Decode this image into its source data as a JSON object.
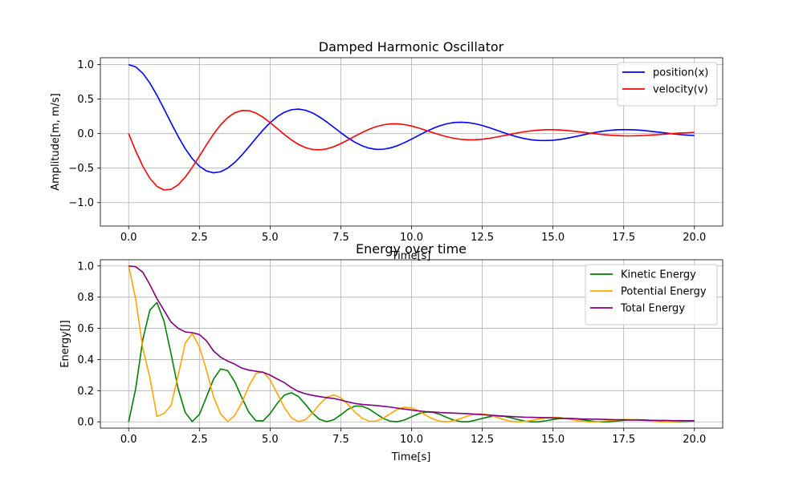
{
  "chart_data": [
    {
      "type": "line",
      "title": "Damped Harmonic Oscillator",
      "xlabel": "Time[s]",
      "ylabel": "Amplitude[m, m/s]",
      "xlim": [
        -1.0,
        21.0
      ],
      "ylim": [
        -1.34,
        1.1
      ],
      "xticks": [
        0.0,
        2.5,
        5.0,
        7.5,
        10.0,
        12.5,
        15.0,
        17.5,
        20.0
      ],
      "xtick_labels": [
        "0.0",
        "2.5",
        "5.0",
        "7.5",
        "10.0",
        "12.5",
        "15.0",
        "17.5",
        "20.0"
      ],
      "yticks": [
        -1.0,
        -0.5,
        0.0,
        0.5,
        1.0
      ],
      "ytick_labels": [
        "−1.0",
        "−0.5",
        "0.0",
        "0.5",
        "1.0"
      ],
      "grid": true,
      "legend": "top-right",
      "series": [
        {
          "name": "position(x)",
          "color": "#0000ff",
          "x": [
            0,
            0.25,
            0.5,
            0.75,
            1.0,
            1.25,
            1.5,
            1.75,
            2.0,
            2.25,
            2.5,
            2.75,
            3.0,
            3.25,
            3.5,
            3.75,
            4.0,
            4.25,
            4.5,
            4.75,
            5.0,
            5.25,
            5.5,
            5.75,
            6.0,
            6.25,
            6.5,
            6.75,
            7.0,
            7.25,
            7.5,
            7.75,
            8.0,
            8.25,
            8.5,
            8.75,
            9.0,
            9.25,
            9.5,
            9.75,
            10.0,
            10.25,
            10.5,
            10.75,
            11.0,
            11.25,
            11.5,
            11.75,
            12.0,
            12.25,
            12.5,
            12.75,
            13.0,
            13.25,
            13.5,
            13.75,
            14.0,
            14.25,
            14.5,
            14.75,
            15.0,
            15.25,
            15.5,
            15.75,
            16.0,
            16.25,
            16.5,
            16.75,
            17.0,
            17.25,
            17.5,
            17.75,
            18.0,
            18.25,
            18.5,
            18.75,
            19.0,
            19.25,
            19.5,
            19.75,
            20.0
          ],
          "y": [
            1.0,
            0.967,
            0.874,
            0.733,
            0.556,
            0.358,
            0.154,
            -0.042,
            -0.218,
            -0.364,
            -0.473,
            -0.542,
            -0.568,
            -0.553,
            -0.501,
            -0.418,
            -0.312,
            -0.192,
            -0.068,
            0.052,
            0.158,
            0.245,
            0.309,
            0.346,
            0.356,
            0.339,
            0.3,
            0.241,
            0.17,
            0.092,
            0.013,
            -0.061,
            -0.125,
            -0.176,
            -0.211,
            -0.228,
            -0.226,
            -0.208,
            -0.175,
            -0.131,
            -0.08,
            -0.026,
            0.027,
            0.074,
            0.114,
            0.143,
            0.161,
            0.166,
            0.16,
            0.143,
            0.118,
            0.086,
            0.051,
            0.015,
            -0.019,
            -0.049,
            -0.073,
            -0.09,
            -0.099,
            -0.101,
            -0.096,
            -0.084,
            -0.067,
            -0.047,
            -0.025,
            -0.002,
            0.018,
            0.035,
            0.047,
            0.055,
            0.058,
            0.057,
            0.052,
            0.043,
            0.032,
            0.02,
            0.008,
            -0.004,
            -0.014,
            -0.022,
            -0.027
          ]
        },
        {
          "name": "velocity(v)",
          "color": "#ff0000",
          "x": [
            0,
            0.25,
            0.5,
            0.75,
            1.0,
            1.25,
            1.5,
            1.75,
            2.0,
            2.25,
            2.5,
            2.75,
            3.0,
            3.25,
            3.5,
            3.75,
            4.0,
            4.25,
            4.5,
            4.75,
            5.0,
            5.25,
            5.5,
            5.75,
            6.0,
            6.25,
            6.5,
            6.75,
            7.0,
            7.25,
            7.5,
            7.75,
            8.0,
            8.25,
            8.5,
            8.75,
            9.0,
            9.25,
            9.5,
            9.75,
            10.0,
            10.25,
            10.5,
            10.75,
            11.0,
            11.25,
            11.5,
            11.75,
            12.0,
            12.25,
            12.5,
            12.75,
            13.0,
            13.25,
            13.5,
            13.75,
            14.0,
            14.25,
            14.5,
            14.75,
            15.0,
            15.25,
            15.5,
            15.75,
            16.0,
            16.25,
            16.5,
            16.75,
            17.0,
            17.25,
            17.5,
            17.75,
            18.0,
            18.25,
            18.5,
            18.75,
            19.0,
            19.25,
            19.5,
            19.75,
            20.0
          ],
          "y": [
            0.0,
            -0.251,
            -0.473,
            -0.649,
            -0.765,
            -0.817,
            -0.807,
            -0.742,
            -0.631,
            -0.488,
            -0.327,
            -0.163,
            -0.008,
            0.127,
            0.231,
            0.302,
            0.335,
            0.333,
            0.298,
            0.238,
            0.16,
            0.074,
            -0.012,
            -0.09,
            -0.156,
            -0.203,
            -0.23,
            -0.236,
            -0.221,
            -0.19,
            -0.145,
            -0.093,
            -0.037,
            0.016,
            0.063,
            0.101,
            0.127,
            0.141,
            0.142,
            0.131,
            0.11,
            0.082,
            0.049,
            0.015,
            -0.017,
            -0.046,
            -0.068,
            -0.083,
            -0.09,
            -0.089,
            -0.082,
            -0.068,
            -0.05,
            -0.03,
            -0.009,
            0.011,
            0.028,
            0.041,
            0.051,
            0.056,
            0.056,
            0.052,
            0.045,
            0.035,
            0.023,
            0.01,
            -0.002,
            -0.013,
            -0.022,
            -0.028,
            -0.032,
            -0.033,
            -0.031,
            -0.027,
            -0.021,
            -0.014,
            -0.006,
            0.001,
            0.008,
            0.013,
            0.017
          ]
        }
      ]
    },
    {
      "type": "line",
      "title": "Energy over time",
      "xlabel": "Time[s]",
      "ylabel": "Energy[J]",
      "xlim": [
        -1.0,
        21.0
      ],
      "ylim": [
        -0.04,
        1.04
      ],
      "xticks": [
        0.0,
        2.5,
        5.0,
        7.5,
        10.0,
        12.5,
        15.0,
        17.5,
        20.0
      ],
      "xtick_labels": [
        "0.0",
        "2.5",
        "5.0",
        "7.5",
        "10.0",
        "12.5",
        "15.0",
        "17.5",
        "20.0"
      ],
      "yticks": [
        0.0,
        0.2,
        0.4,
        0.6,
        0.8,
        1.0
      ],
      "ytick_labels": [
        "0.0",
        "0.2",
        "0.4",
        "0.6",
        "0.8",
        "1.0"
      ],
      "grid": true,
      "legend": "top-right",
      "series": [
        {
          "name": "Kinetic Energy",
          "color": "#008000",
          "x": [
            0,
            0.25,
            0.5,
            0.75,
            1.0,
            1.25,
            1.5,
            1.75,
            2.0,
            2.25,
            2.5,
            2.75,
            3.0,
            3.25,
            3.5,
            3.75,
            4.0,
            4.25,
            4.5,
            4.75,
            5.0,
            5.25,
            5.5,
            5.75,
            6.0,
            6.25,
            6.5,
            6.75,
            7.0,
            7.25,
            7.5,
            7.75,
            8.0,
            8.25,
            8.5,
            8.75,
            9.0,
            9.25,
            9.5,
            9.75,
            10.0,
            10.25,
            10.5,
            10.75,
            11.0,
            11.25,
            11.5,
            11.75,
            12.0,
            12.25,
            12.5,
            12.75,
            13.0,
            13.25,
            13.5,
            13.75,
            14.0,
            14.25,
            14.5,
            14.75,
            15.0,
            15.25,
            15.5,
            15.75,
            16.0,
            16.25,
            16.5,
            16.75,
            17.0,
            17.25,
            17.5,
            17.75,
            18.0,
            18.25,
            18.5,
            18.75,
            19.0,
            19.25,
            19.5,
            19.75,
            20.0
          ],
          "y": [
            0.0,
            0.214,
            0.528,
            0.717,
            0.765,
            0.646,
            0.435,
            0.212,
            0.06,
            0.002,
            0.048,
            0.159,
            0.274,
            0.339,
            0.329,
            0.258,
            0.155,
            0.061,
            0.007,
            0.006,
            0.053,
            0.118,
            0.171,
            0.187,
            0.163,
            0.112,
            0.056,
            0.016,
            0.001,
            0.014,
            0.045,
            0.08,
            0.101,
            0.101,
            0.082,
            0.052,
            0.022,
            0.004,
            0.001,
            0.012,
            0.032,
            0.052,
            0.063,
            0.061,
            0.048,
            0.028,
            0.011,
            0.001,
            0.001,
            0.01,
            0.022,
            0.033,
            0.038,
            0.036,
            0.027,
            0.015,
            0.005,
            0.0,
            0.001,
            0.007,
            0.015,
            0.021,
            0.023,
            0.021,
            0.015,
            0.008,
            0.002,
            0.0,
            0.001,
            0.005,
            0.01,
            0.013,
            0.014,
            0.012,
            0.008,
            0.004,
            0.001,
            0.0,
            0.001,
            0.003,
            0.006
          ]
        },
        {
          "name": "Potential Energy",
          "color": "#ffa500",
          "x": [
            0,
            0.25,
            0.5,
            0.75,
            1.0,
            1.25,
            1.5,
            1.75,
            2.0,
            2.25,
            2.5,
            2.75,
            3.0,
            3.25,
            3.5,
            3.75,
            4.0,
            4.25,
            4.5,
            4.75,
            5.0,
            5.25,
            5.5,
            5.75,
            6.0,
            6.25,
            6.5,
            6.75,
            7.0,
            7.25,
            7.5,
            7.75,
            8.0,
            8.25,
            8.5,
            8.75,
            9.0,
            9.25,
            9.5,
            9.75,
            10.0,
            10.25,
            10.5,
            10.75,
            11.0,
            11.25,
            11.5,
            11.75,
            12.0,
            12.25,
            12.5,
            12.75,
            13.0,
            13.25,
            13.5,
            13.75,
            14.0,
            14.25,
            14.5,
            14.75,
            15.0,
            15.25,
            15.5,
            15.75,
            16.0,
            16.25,
            16.5,
            16.75,
            17.0,
            17.25,
            17.5,
            17.75,
            18.0,
            18.25,
            18.5,
            18.75,
            19.0,
            19.25,
            19.5,
            19.75,
            20.0
          ],
          "y": [
            1.0,
            0.786,
            0.472,
            0.283,
            0.035,
            0.053,
            0.106,
            0.298,
            0.505,
            0.566,
            0.482,
            0.333,
            0.16,
            0.051,
            0.002,
            0.041,
            0.123,
            0.23,
            0.31,
            0.321,
            0.27,
            0.183,
            0.093,
            0.027,
            0.001,
            0.014,
            0.057,
            0.113,
            0.157,
            0.173,
            0.155,
            0.112,
            0.063,
            0.024,
            0.004,
            0.005,
            0.024,
            0.052,
            0.08,
            0.094,
            0.09,
            0.071,
            0.043,
            0.019,
            0.004,
            0.0,
            0.008,
            0.022,
            0.039,
            0.05,
            0.052,
            0.044,
            0.03,
            0.015,
            0.004,
            0.0,
            0.003,
            0.009,
            0.018,
            0.025,
            0.029,
            0.027,
            0.02,
            0.011,
            0.004,
            0.0,
            0.001,
            0.004,
            0.008,
            0.012,
            0.015,
            0.015,
            0.012,
            0.008,
            0.004,
            0.001,
            0.0,
            0.001,
            0.004,
            0.006,
            0.008
          ]
        },
        {
          "name": "Total Energy",
          "color": "#800080",
          "x": [
            0,
            0.25,
            0.5,
            0.75,
            1.0,
            1.25,
            1.5,
            1.75,
            2.0,
            2.25,
            2.5,
            2.75,
            3.0,
            3.25,
            3.5,
            3.75,
            4.0,
            4.25,
            4.5,
            4.75,
            5.0,
            5.25,
            5.5,
            5.75,
            6.0,
            6.25,
            6.5,
            6.75,
            7.0,
            7.25,
            7.5,
            7.75,
            8.0,
            8.25,
            8.5,
            8.75,
            9.0,
            9.25,
            9.5,
            9.75,
            10.0,
            10.25,
            10.5,
            10.75,
            11.0,
            11.25,
            11.5,
            11.75,
            12.0,
            12.25,
            12.5,
            12.75,
            13.0,
            13.25,
            13.5,
            13.75,
            14.0,
            14.25,
            14.5,
            14.75,
            15.0,
            15.25,
            15.5,
            15.75,
            16.0,
            16.25,
            16.5,
            16.75,
            17.0,
            17.25,
            17.5,
            17.75,
            18.0,
            18.25,
            18.5,
            18.75,
            19.0,
            19.25,
            19.5,
            19.75,
            20.0
          ],
          "y": [
            1.0,
            0.995,
            0.96,
            0.88,
            0.79,
            0.715,
            0.64,
            0.6,
            0.577,
            0.572,
            0.56,
            0.52,
            0.455,
            0.415,
            0.39,
            0.37,
            0.345,
            0.332,
            0.325,
            0.318,
            0.3,
            0.275,
            0.252,
            0.22,
            0.195,
            0.18,
            0.17,
            0.162,
            0.155,
            0.15,
            0.14,
            0.128,
            0.118,
            0.112,
            0.108,
            0.105,
            0.1,
            0.095,
            0.088,
            0.082,
            0.076,
            0.07,
            0.066,
            0.063,
            0.06,
            0.058,
            0.056,
            0.054,
            0.052,
            0.049,
            0.046,
            0.043,
            0.04,
            0.037,
            0.034,
            0.032,
            0.03,
            0.029,
            0.028,
            0.027,
            0.025,
            0.024,
            0.022,
            0.021,
            0.019,
            0.018,
            0.017,
            0.016,
            0.015,
            0.014,
            0.013,
            0.012,
            0.011,
            0.011,
            0.01,
            0.009,
            0.009,
            0.008,
            0.008,
            0.007,
            0.007
          ]
        }
      ]
    }
  ]
}
